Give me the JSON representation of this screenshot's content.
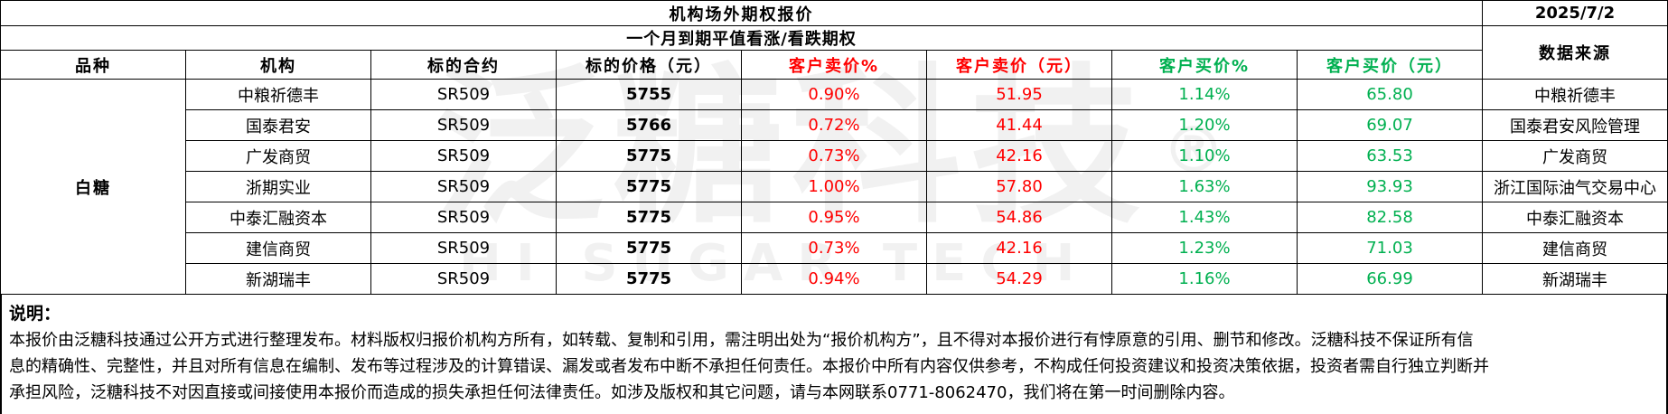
{
  "title": "机构场外期权报价",
  "date": "2025/7/2",
  "subtitle": "一个月到期平值看涨/看跌期权",
  "columns": [
    "品种",
    "机构",
    "标的合约",
    "标的价格（元）",
    "客户卖价%",
    "客户卖价（元）",
    "客户买价%",
    "客户买价（元）",
    "数据来源"
  ],
  "variety": "白糖",
  "rows": [
    {
      "institution": "中粮祈德丰",
      "contract": "SR509",
      "price": "5755",
      "sell_pct": "0.90%",
      "sell_price": "51.95",
      "buy_pct": "1.14%",
      "buy_price": "65.80",
      "source": "中粮祈德丰"
    },
    {
      "institution": "国泰君安",
      "contract": "SR509",
      "price": "5766",
      "sell_pct": "0.72%",
      "sell_price": "41.44",
      "buy_pct": "1.20%",
      "buy_price": "69.07",
      "source": "国泰君安风险管理"
    },
    {
      "institution": "广发商贸",
      "contract": "SR509",
      "price": "5775",
      "sell_pct": "0.73%",
      "sell_price": "42.16",
      "buy_pct": "1.10%",
      "buy_price": "63.53",
      "source": "广发商贸"
    },
    {
      "institution": "浙期实业",
      "contract": "SR509",
      "price": "5775",
      "sell_pct": "1.00%",
      "sell_price": "57.80",
      "buy_pct": "1.63%",
      "buy_price": "93.93",
      "source": "浙江国际油气交易中心"
    },
    {
      "institution": "中泰汇融资本",
      "contract": "SR509",
      "price": "5775",
      "sell_pct": "0.95%",
      "sell_price": "54.86",
      "buy_pct": "1.43%",
      "buy_price": "82.58",
      "source": "中泰汇融资本"
    },
    {
      "institution": "建信商贸",
      "contract": "SR509",
      "price": "5775",
      "sell_pct": "0.73%",
      "sell_price": "42.16",
      "buy_pct": "1.23%",
      "buy_price": "71.03",
      "source": "建信商贸"
    },
    {
      "institution": "新湖瑞丰",
      "contract": "SR509",
      "price": "5775",
      "sell_pct": "0.94%",
      "sell_price": "54.29",
      "buy_pct": "1.16%",
      "buy_price": "66.99",
      "source": "新湖瑞丰"
    }
  ],
  "note": {
    "label": "说明：",
    "lines": [
      "本报价由泛糖科技通过公开方式进行整理发布。材料版权归报价机构方所有，如转载、复制和引用，需注明出处为“报价机构方”，且不得对本报价进行有悖原意的引用、删节和修改。泛糖科技不保证所有信",
      "息的精确性、完整性，并且对所有信息在编制、发布等过程涉及的计算错误、漏发或者发布中断不承担任何责任。本报价中所有内容仅供参考，不构成任何投资建议和投资决策依据，投资者需自行独立判断并",
      "承担风险，泛糖科技不对因直接或间接使用本报价而造成的损失承担任何法律责任。如涉及版权和其它问题，请与本网联系0771-8062470，我们将在第一时间删除内容。"
    ]
  },
  "watermark": {
    "text": "泛糖科技",
    "registered": "®",
    "subtext": "HI SUGAR TECH"
  },
  "colors": {
    "sell": "#ff0000",
    "buy": "#00b050",
    "border": "#000000",
    "watermark_gray": "#f0f0f0"
  }
}
